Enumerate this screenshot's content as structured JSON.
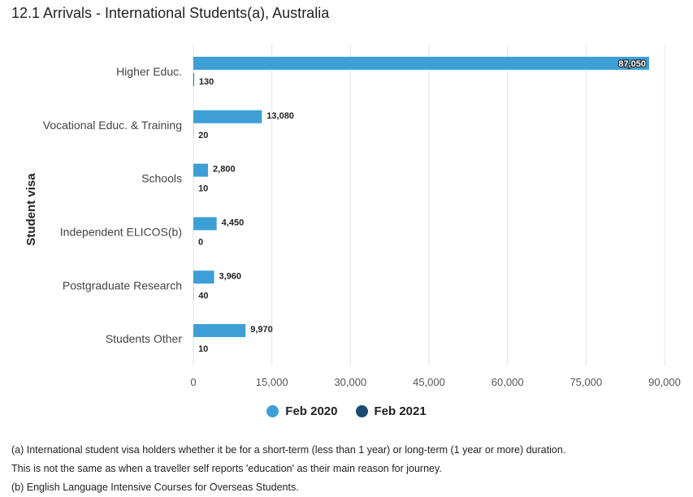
{
  "title": "12.1 Arrivals - International Students(a), Australia",
  "chart_data": {
    "type": "bar",
    "orientation": "horizontal",
    "ylabel": "Student visa",
    "categories": [
      "Higher Educ.",
      "Vocational Educ. & Training",
      "Schools",
      "Independent ELICOS(b)",
      "Postgraduate Research",
      "Students Other"
    ],
    "series": [
      {
        "name": "Feb 2020",
        "color": "#3d9fd6",
        "values": [
          87050,
          13080,
          2800,
          4450,
          3960,
          9970
        ],
        "labels": [
          "87,050",
          "13,080",
          "2,800",
          "4,450",
          "3,960",
          "9,970"
        ]
      },
      {
        "name": "Feb 2021",
        "color": "#1c4a73",
        "values": [
          130,
          20,
          10,
          0,
          40,
          10
        ],
        "labels": [
          "130",
          "20",
          "10",
          "0",
          "40",
          "10"
        ]
      }
    ],
    "xlim": [
      0,
      90000
    ],
    "xticks": [
      0,
      15000,
      30000,
      45000,
      60000,
      75000,
      90000
    ],
    "xtick_labels": [
      "0",
      "15,000",
      "30,000",
      "45,000",
      "60,000",
      "75,000",
      "90,000"
    ],
    "grid": true,
    "legend": "bottom-center"
  },
  "footnotes": [
    "(a) International student visa holders whether it be for a short-term (less than 1 year) or long-term (1 year or more) duration.",
    "This is not the same as when a traveller self reports 'education' as their main reason for journey.",
    "(b) English Language Intensive Courses for Overseas Students."
  ]
}
